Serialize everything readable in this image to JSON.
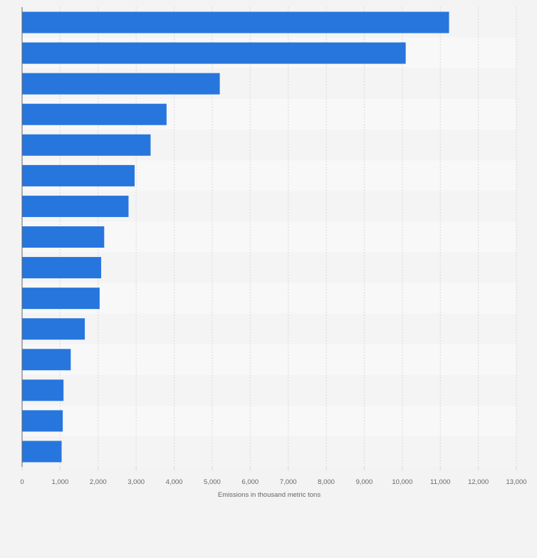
{
  "chart_data": {
    "type": "bar",
    "orientation": "horizontal",
    "title": "",
    "xlabel": "Emissions in thousand metric tons",
    "ylabel": "",
    "categories": [
      "",
      "",
      "",
      "",
      "",
      "",
      "",
      "",
      "",
      "",
      "",
      "",
      "",
      "",
      ""
    ],
    "values": [
      11230,
      10090,
      5200,
      3800,
      3380,
      2960,
      2800,
      2160,
      2080,
      2040,
      1650,
      1280,
      1090,
      1070,
      1040
    ],
    "xlim": [
      0,
      13000
    ],
    "x_ticks": [
      0,
      1000,
      2000,
      3000,
      4000,
      5000,
      6000,
      7000,
      8000,
      9000,
      10000,
      11000,
      12000,
      13000
    ],
    "x_tick_labels": [
      "0",
      "1,000",
      "2,000",
      "3,000",
      "4,000",
      "5,000",
      "6,000",
      "7,000",
      "8,000",
      "9,000",
      "10,000",
      "11,000",
      "12,000",
      "13,000"
    ],
    "grid": true,
    "legend": "none",
    "colors": {
      "bar": "#2776de",
      "band_light": "#f4f4f4",
      "band_lighter": "#f8f8f8",
      "grid": "#d9d9d9",
      "axis": "#666666",
      "background": "#f3f3f3"
    }
  }
}
